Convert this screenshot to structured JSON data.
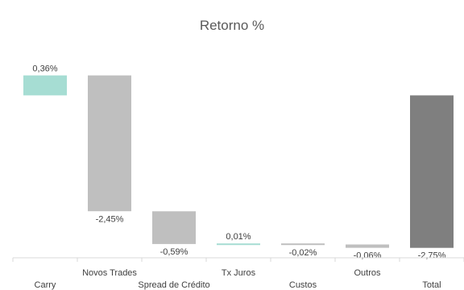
{
  "chart_data": {
    "type": "bar",
    "subtype": "waterfall",
    "title": "Retorno %",
    "xlabel": "",
    "ylabel": "",
    "ylim": [
      -2.9,
      0.5
    ],
    "grid": false,
    "legend": "none",
    "categories": [
      "Carry",
      "Novos Trades",
      "Spread de Crédito",
      "Tx Juros",
      "Custos",
      "Outros",
      "Total"
    ],
    "values": [
      0.36,
      -2.45,
      -0.59,
      0.01,
      -0.02,
      -0.06,
      -2.75
    ],
    "value_labels": [
      "0,36%",
      "-2,45%",
      "-0,59%",
      "0,01%",
      "-0,02%",
      "-0,06%",
      "-2,75%"
    ],
    "is_total": [
      false,
      false,
      false,
      false,
      false,
      false,
      true
    ],
    "colors": {
      "increase": "#a6ddd3",
      "decrease": "#bfbfbf",
      "total": "#7f7f7f",
      "axis": "#d9d9d9"
    }
  }
}
